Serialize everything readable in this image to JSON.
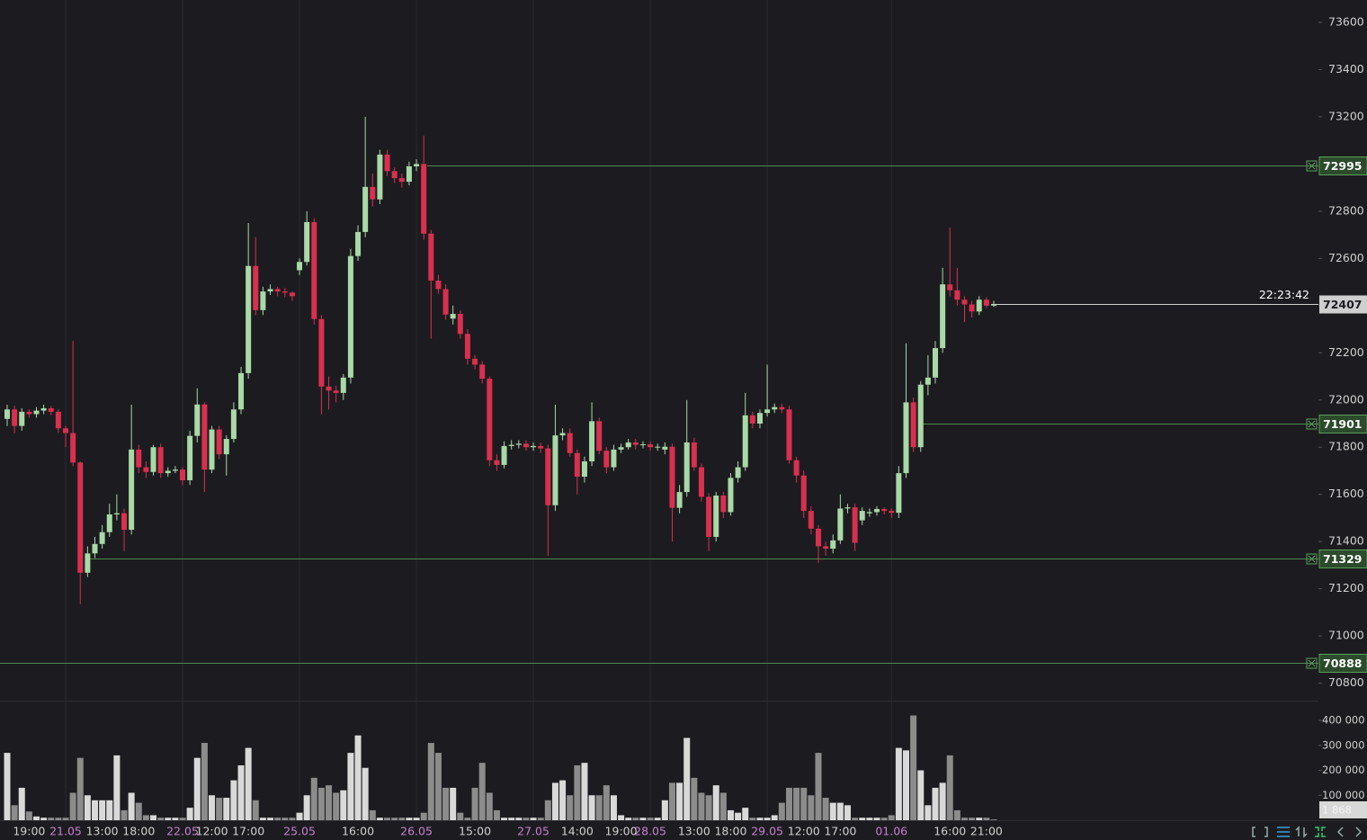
{
  "chart_data": {
    "type": "candlestick",
    "categories": [
      null,
      null,
      null,
      "19:00",
      null,
      null,
      null,
      null,
      "21.05",
      null,
      null,
      null,
      null,
      "13:00",
      null,
      null,
      null,
      null,
      "18:00",
      null,
      null,
      null,
      null,
      null,
      "22.05",
      null,
      null,
      null,
      "12:00",
      null,
      null,
      null,
      null,
      "17:00",
      null,
      null,
      null,
      null,
      null,
      null,
      "25.05",
      null,
      null,
      null,
      null,
      null,
      null,
      null,
      "16:00",
      null,
      null,
      null,
      null,
      null,
      null,
      null,
      "26.05",
      null,
      null,
      null,
      null,
      null,
      null,
      null,
      "15:00",
      null,
      null,
      null,
      null,
      null,
      null,
      null,
      "27.05",
      null,
      null,
      null,
      null,
      null,
      "14:00",
      null,
      null,
      null,
      null,
      null,
      "19:00",
      null,
      null,
      null,
      "28.05",
      null,
      null,
      null,
      null,
      null,
      "13:00",
      null,
      null,
      null,
      null,
      "18:00",
      null,
      null,
      null,
      null,
      "29.05",
      null,
      null,
      null,
      null,
      "12:00",
      null,
      null,
      null,
      null,
      "17:00",
      null,
      null,
      null,
      null,
      null,
      null,
      "01.06",
      null,
      null,
      null,
      null,
      null,
      null,
      null,
      "16:00",
      null,
      null,
      null,
      null,
      "21:00",
      null
    ],
    "open": [
      71920,
      71960,
      71890,
      71950,
      71940,
      71955,
      71965,
      71950,
      71880,
      71860,
      71735,
      71268,
      71350,
      71390,
      71440,
      71515,
      71520,
      71450,
      71790,
      71715,
      71695,
      71800,
      71690,
      71700,
      71705,
      71660,
      71848,
      71981,
      71705,
      71875,
      71770,
      71835,
      71960,
      72114,
      72568,
      72381,
      72460,
      72470,
      72460,
      72455,
      72550,
      72585,
      72754,
      72343,
      72057,
      72040,
      72030,
      72095,
      72610,
      72712,
      72903,
      72850,
      73040,
      72970,
      72940,
      72925,
      72990,
      73000,
      72705,
      72506,
      72470,
      72345,
      72365,
      72280,
      72175,
      72150,
      72090,
      71745,
      71725,
      71805,
      71810,
      71815,
      71800,
      71805,
      71795,
      71554,
      71850,
      71860,
      71775,
      71675,
      71740,
      71910,
      71785,
      71715,
      71790,
      71800,
      71820,
      71810,
      71812,
      71800,
      71790,
      71802,
      71543,
      71610,
      71820,
      71715,
      71590,
      71420,
      71595,
      71525,
      71670,
      71715,
      71935,
      71900,
      71945,
      71960,
      71970,
      71960,
      71745,
      71680,
      71530,
      71455,
      71380,
      71370,
      71405,
      71540,
      71545,
      71490,
      71520,
      71525,
      71538,
      71530,
      71522,
      71690,
      71990,
      71800,
      72065,
      72095,
      72220,
      72490,
      72465,
      72425,
      72405,
      72375,
      72425,
      72400
    ],
    "high": [
      71980,
      71975,
      71965,
      71960,
      71970,
      71980,
      71975,
      71960,
      71890,
      72250,
      71740,
      71380,
      71420,
      71470,
      71560,
      71600,
      71540,
      71980,
      71810,
      71740,
      71810,
      71815,
      71715,
      71720,
      71715,
      71870,
      72050,
      71990,
      71890,
      71890,
      71850,
      71990,
      72140,
      72750,
      72690,
      72480,
      72490,
      72480,
      72475,
      72460,
      72600,
      72800,
      72770,
      72360,
      72100,
      72060,
      72110,
      72640,
      72740,
      73200,
      72960,
      73060,
      73060,
      72985,
      72960,
      73010,
      73020,
      73120,
      72720,
      72530,
      72490,
      72400,
      72380,
      72300,
      72190,
      72165,
      72100,
      71770,
      71825,
      71830,
      71830,
      71830,
      71820,
      71820,
      71810,
      71980,
      71880,
      71880,
      71790,
      71760,
      71990,
      71925,
      71800,
      71810,
      71815,
      71835,
      71835,
      71825,
      71825,
      71815,
      71820,
      71815,
      71640,
      72000,
      71840,
      71730,
      71605,
      71610,
      71610,
      71690,
      71740,
      72030,
      71950,
      71960,
      72150,
      71985,
      71985,
      71975,
      71760,
      71700,
      71550,
      71470,
      71400,
      71430,
      71600,
      71560,
      71560,
      71545,
      71540,
      71550,
      71545,
      71540,
      71720,
      72240,
      72010,
      72080,
      72190,
      72250,
      72560,
      72730,
      72560,
      72440,
      72420,
      72440,
      72435,
      72420
    ],
    "low": [
      71890,
      71860,
      71870,
      71925,
      71925,
      71940,
      71935,
      71860,
      71800,
      71720,
      71135,
      71250,
      71330,
      71370,
      71420,
      71490,
      71360,
      71430,
      71690,
      71670,
      71680,
      71670,
      71675,
      71690,
      71640,
      71640,
      71820,
      71610,
      71690,
      71750,
      71680,
      71820,
      71940,
      72090,
      72360,
      72360,
      72445,
      72440,
      72435,
      72420,
      72530,
      72570,
      72320,
      71940,
      71960,
      71990,
      72000,
      72070,
      72590,
      72690,
      72820,
      72830,
      72950,
      72920,
      72900,
      72910,
      72970,
      72680,
      72260,
      72450,
      72340,
      72320,
      72260,
      72150,
      72130,
      72070,
      71720,
      71700,
      71710,
      71790,
      71795,
      71785,
      71785,
      71775,
      71340,
      71530,
      71830,
      71760,
      71600,
      71650,
      71720,
      71770,
      71690,
      71700,
      71775,
      71790,
      71790,
      71795,
      71785,
      71785,
      71770,
      71400,
      71520,
      71590,
      71700,
      71570,
      71360,
      71400,
      71500,
      71510,
      71650,
      71700,
      71880,
      71880,
      71930,
      71945,
      71945,
      71730,
      71650,
      71500,
      71430,
      71310,
      71340,
      71350,
      71390,
      71520,
      71360,
      71470,
      71505,
      71510,
      71515,
      71500,
      71500,
      71670,
      71780,
      71780,
      72020,
      72070,
      72200,
      72440,
      72400,
      72330,
      72350,
      72360,
      72390,
      72395
    ],
    "close": [
      71960,
      71890,
      71950,
      71940,
      71955,
      71965,
      71950,
      71880,
      71860,
      71735,
      71268,
      71350,
      71390,
      71440,
      71515,
      71520,
      71450,
      71790,
      71715,
      71695,
      71800,
      71690,
      71700,
      71705,
      71660,
      71848,
      71981,
      71705,
      71875,
      71770,
      71835,
      71960,
      72114,
      72568,
      72381,
      72460,
      72470,
      72460,
      72455,
      72440,
      72585,
      72754,
      72343,
      72057,
      72040,
      72030,
      72095,
      72610,
      72712,
      72903,
      72850,
      73040,
      72970,
      72940,
      72925,
      72990,
      73000,
      72705,
      72506,
      72470,
      72362,
      72365,
      72280,
      72175,
      72150,
      72090,
      71745,
      71725,
      71805,
      71810,
      71815,
      71800,
      71805,
      71795,
      71554,
      71850,
      71860,
      71775,
      71675,
      71740,
      71910,
      71785,
      71715,
      71790,
      71800,
      71820,
      71810,
      71812,
      71800,
      71802,
      71802,
      71543,
      71610,
      71820,
      71715,
      71590,
      71420,
      71595,
      71525,
      71670,
      71715,
      71935,
      71900,
      71945,
      71960,
      71970,
      71960,
      71745,
      71680,
      71530,
      71455,
      71380,
      71370,
      71405,
      71540,
      71545,
      71395,
      71530,
      71525,
      71538,
      71530,
      71522,
      71690,
      71990,
      71800,
      72065,
      72095,
      72220,
      72490,
      72465,
      72425,
      72405,
      72375,
      72425,
      72400,
      72407
    ],
    "up_color": "#a8d9a6",
    "down_color": "#d9304f",
    "ylim": [
      70730,
      73695
    ],
    "yticks": [
      70800,
      71000,
      71200,
      71400,
      71600,
      71800,
      72000,
      72200,
      72400,
      72600,
      72800,
      73000,
      73200,
      73400,
      73600
    ],
    "levels": [
      72995,
      71901,
      71329,
      70888
    ],
    "last_price": 72407,
    "countdown": "22:23:42",
    "volume": {
      "values": [
        270000,
        60000,
        130000,
        35000,
        15000,
        10000,
        10000,
        10000,
        10000,
        110000,
        250000,
        100000,
        80000,
        80000,
        80000,
        260000,
        40000,
        110000,
        70000,
        20000,
        20000,
        10000,
        10000,
        10000,
        10000,
        50000,
        250000,
        310000,
        100000,
        90000,
        90000,
        160000,
        220000,
        290000,
        80000,
        10000,
        10000,
        10000,
        10000,
        10000,
        30000,
        100000,
        170000,
        130000,
        140000,
        110000,
        120000,
        270000,
        340000,
        210000,
        40000,
        10000,
        10000,
        10000,
        10000,
        10000,
        10000,
        30000,
        310000,
        270000,
        130000,
        130000,
        30000,
        10000,
        130000,
        230000,
        110000,
        40000,
        10000,
        10000,
        10000,
        10000,
        10000,
        10000,
        80000,
        150000,
        160000,
        100000,
        220000,
        230000,
        100000,
        100000,
        140000,
        100000,
        20000,
        10000,
        10000,
        10000,
        10000,
        10000,
        80000,
        150000,
        150000,
        330000,
        170000,
        110000,
        100000,
        140000,
        110000,
        40000,
        30000,
        50000,
        10000,
        10000,
        10000,
        20000,
        70000,
        130000,
        130000,
        130000,
        100000,
        270000,
        90000,
        70000,
        70000,
        60000,
        10000,
        10000,
        10000,
        10000,
        10000,
        20000,
        290000,
        280000,
        420000,
        200000,
        60000,
        130000,
        150000,
        260000,
        40000,
        10000,
        10000,
        10000,
        10000,
        1868
      ],
      "last_label": "1 868",
      "up_color": "#d9d9d9",
      "down_color": "#8c8c8c",
      "ylim": [
        0,
        476000
      ],
      "yticks": [
        {
          "value": 100000,
          "label": "100 000"
        },
        {
          "value": 200000,
          "label": "200 000"
        },
        {
          "value": 300000,
          "label": "300 000"
        },
        {
          "value": 400000,
          "label": "400 000"
        }
      ]
    }
  }
}
